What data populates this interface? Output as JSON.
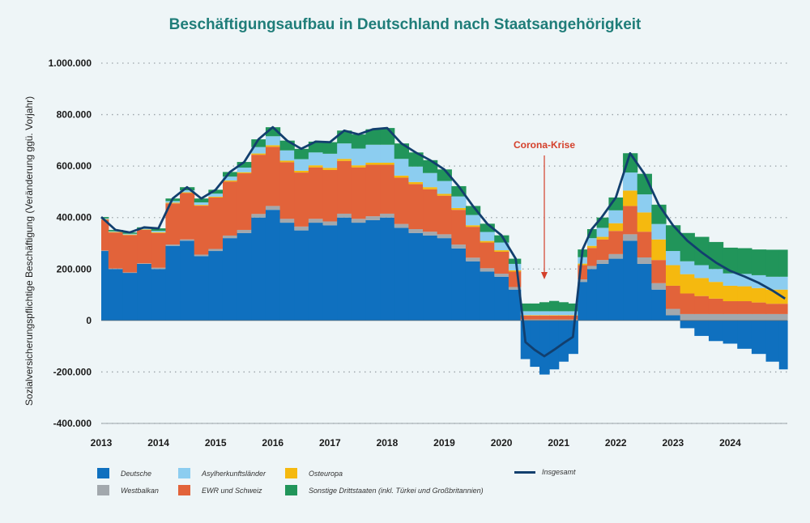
{
  "title": "Beschäftigungsaufbau in Deutschland nach Staatsangehörigkeit",
  "colors": {
    "Deutsche": "#0f70bf",
    "Westbalkan": "#a2a8ad",
    "EWR und Schweiz": "#e2633a",
    "Osteuropa": "#f5b90f",
    "Asylherkunftsländer": "#8ccdf0",
    "Sonstige Drittstaaten (inkl. Türkei und Großbritannien)": "#21955a",
    "Insgesamt": "#123f6e"
  },
  "legend": [
    {
      "name": "Deutsche",
      "label": "Deutsche"
    },
    {
      "name": "Asylherkunftsländer",
      "label": "Asylherkunftsländer"
    },
    {
      "name": "Osteuropa",
      "label": "Osteuropa"
    },
    {
      "name": "Insgesamt",
      "label": "Insgesamt"
    },
    {
      "name": "Westbalkan",
      "label": "Westbalkan"
    },
    {
      "name": "EWR und Schweiz",
      "label": "EWR und Schweiz"
    },
    {
      "name": "Sonstige Drittstaaten (inkl. Türkei und Großbritannien)",
      "label": "Sonstige Drittstaaten (inkl. Türkei und Großbritannien)"
    }
  ],
  "chart_data": {
    "type": "area",
    "subtype": "stacked monthly columns with total line",
    "title": "Beschäftigungsaufbau in Deutschland nach Staatsangehörigkeit",
    "ylabel": "Sozialversicherungspflichtige Beschäftigung (Veränderung ggü. Vorjahr)",
    "xlabel": "",
    "ylim": [
      -400000,
      1000000
    ],
    "yticks": [
      -400000,
      -200000,
      0,
      200000,
      400000,
      600000,
      800000,
      1000000
    ],
    "ytick_labels": [
      "-400.000",
      "-200.000",
      "0",
      "200.000",
      "400.000",
      "600.000",
      "800.000",
      "1.000.000"
    ],
    "x_categories": [
      "2013",
      "2014",
      "2015",
      "2016",
      "2017",
      "2018",
      "2019",
      "2020",
      "2021",
      "2022",
      "2023",
      "2024"
    ],
    "grid": "horizontal dotted",
    "annotation": {
      "text": "Corona-Krise",
      "x": 2020.75
    },
    "x": [
      2013.0,
      2013.25,
      2013.5,
      2013.75,
      2014.0,
      2014.25,
      2014.5,
      2014.75,
      2015.0,
      2015.25,
      2015.5,
      2015.75,
      2016.0,
      2016.25,
      2016.5,
      2016.75,
      2017.0,
      2017.25,
      2017.5,
      2017.75,
      2018.0,
      2018.25,
      2018.5,
      2018.75,
      2019.0,
      2019.25,
      2019.5,
      2019.75,
      2020.0,
      2020.25,
      2020.42,
      2020.58,
      2020.75,
      2020.92,
      2021.08,
      2021.25,
      2021.42,
      2021.58,
      2021.75,
      2022.0,
      2022.25,
      2022.5,
      2022.75,
      2023.0,
      2023.25,
      2023.5,
      2023.75,
      2024.0,
      2024.25,
      2024.5,
      2024.75,
      2024.96
    ],
    "series": [
      {
        "name": "Deutsche",
        "values": [
          270000,
          200000,
          185000,
          220000,
          200000,
          290000,
          310000,
          250000,
          270000,
          320000,
          340000,
          400000,
          430000,
          380000,
          350000,
          380000,
          370000,
          400000,
          380000,
          390000,
          400000,
          360000,
          340000,
          330000,
          320000,
          280000,
          230000,
          190000,
          170000,
          120000,
          -150000,
          -180000,
          -210000,
          -190000,
          -160000,
          -130000,
          150000,
          200000,
          220000,
          240000,
          310000,
          220000,
          120000,
          20000,
          -30000,
          -60000,
          -80000,
          -90000,
          -110000,
          -130000,
          -160000,
          -190000
        ]
      },
      {
        "name": "Westbalkan",
        "values": [
          2000,
          2000,
          2000,
          2000,
          5000,
          5000,
          5000,
          6000,
          8000,
          10000,
          12000,
          14000,
          15000,
          15000,
          15000,
          15000,
          15000,
          15000,
          15000,
          15000,
          15000,
          15000,
          15000,
          15000,
          15000,
          15000,
          14000,
          13000,
          12000,
          10000,
          4000,
          4000,
          4000,
          4000,
          4000,
          4000,
          10000,
          12000,
          15000,
          18000,
          25000,
          25000,
          25000,
          25000,
          25000,
          25000,
          25000,
          25000,
          25000,
          25000,
          25000,
          25000
        ]
      },
      {
        "name": "EWR und Schweiz",
        "values": [
          120000,
          140000,
          145000,
          130000,
          135000,
          160000,
          180000,
          190000,
          200000,
          210000,
          220000,
          230000,
          230000,
          220000,
          210000,
          200000,
          200000,
          205000,
          200000,
          200000,
          190000,
          180000,
          175000,
          165000,
          150000,
          135000,
          120000,
          100000,
          85000,
          60000,
          15000,
          15000,
          15000,
          15000,
          15000,
          15000,
          55000,
          70000,
          80000,
          90000,
          110000,
          100000,
          90000,
          90000,
          80000,
          70000,
          60000,
          50000,
          50000,
          45000,
          40000,
          40000
        ]
      },
      {
        "name": "Osteuropa",
        "values": [
          2000,
          2000,
          2000,
          2000,
          3000,
          3000,
          3000,
          3000,
          3000,
          4000,
          4000,
          5000,
          6000,
          6000,
          7000,
          8000,
          8000,
          8000,
          8000,
          8000,
          8000,
          8000,
          8000,
          8000,
          7000,
          7000,
          6000,
          6000,
          6000,
          5000,
          2000,
          2000,
          2000,
          2000,
          2000,
          2000,
          6000,
          8000,
          10000,
          30000,
          60000,
          75000,
          80000,
          80000,
          75000,
          70000,
          65000,
          60000,
          58000,
          56000,
          55000,
          55000
        ]
      },
      {
        "name": "Asylherkunftsländer",
        "values": [
          3000,
          3000,
          3000,
          3000,
          5000,
          6000,
          8000,
          10000,
          12000,
          15000,
          18000,
          25000,
          35000,
          40000,
          45000,
          50000,
          55000,
          60000,
          65000,
          70000,
          70000,
          65000,
          60000,
          55000,
          50000,
          45000,
          40000,
          35000,
          30000,
          25000,
          15000,
          15000,
          15000,
          15000,
          15000,
          15000,
          25000,
          30000,
          35000,
          50000,
          70000,
          70000,
          60000,
          55000,
          50000,
          50000,
          50000,
          48000,
          48000,
          50000,
          50000,
          50000
        ]
      },
      {
        "name": "Sonstige Drittstaaten (inkl. Türkei und Großbritannien)",
        "values": [
          5000,
          5000,
          5000,
          5000,
          10000,
          10000,
          12000,
          15000,
          15000,
          18000,
          22000,
          30000,
          35000,
          38000,
          40000,
          42000,
          45000,
          50000,
          55000,
          60000,
          65000,
          60000,
          55000,
          50000,
          45000,
          40000,
          35000,
          32000,
          28000,
          20000,
          30000,
          30000,
          35000,
          40000,
          35000,
          30000,
          30000,
          35000,
          40000,
          50000,
          75000,
          80000,
          75000,
          100000,
          110000,
          110000,
          105000,
          100000,
          100000,
          100000,
          105000,
          105000
        ]
      },
      {
        "name": "Insgesamt",
        "values": [
          402000,
          352000,
          342000,
          362000,
          358000,
          474000,
          518000,
          474000,
          508000,
          577000,
          616000,
          704000,
          751000,
          699000,
          667000,
          695000,
          693000,
          738000,
          723000,
          743000,
          748000,
          688000,
          653000,
          623000,
          587000,
          522000,
          445000,
          376000,
          331000,
          240000,
          -84000,
          -114000,
          -139000,
          -114000,
          -89000,
          -64000,
          276000,
          355000,
          400000,
          478000,
          650000,
          570000,
          450000,
          370000,
          310000,
          265000,
          225000,
          193000,
          171000,
          146000,
          115000,
          85000
        ]
      }
    ]
  }
}
